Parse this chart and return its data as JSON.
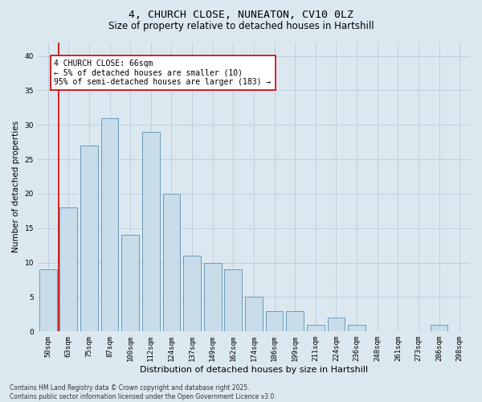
{
  "title_line1": "4, CHURCH CLOSE, NUNEATON, CV10 0LZ",
  "title_line2": "Size of property relative to detached houses in Hartshill",
  "xlabel": "Distribution of detached houses by size in Hartshill",
  "ylabel": "Number of detached properties",
  "categories": [
    "50sqm",
    "63sqm",
    "75sqm",
    "87sqm",
    "100sqm",
    "112sqm",
    "124sqm",
    "137sqm",
    "149sqm",
    "162sqm",
    "174sqm",
    "186sqm",
    "199sqm",
    "211sqm",
    "224sqm",
    "236sqm",
    "248sqm",
    "261sqm",
    "273sqm",
    "286sqm",
    "298sqm"
  ],
  "values": [
    9,
    18,
    27,
    31,
    14,
    29,
    20,
    11,
    10,
    9,
    5,
    3,
    3,
    1,
    2,
    1,
    0,
    0,
    0,
    1,
    0
  ],
  "bar_color": "#c8dcea",
  "bar_edge_color": "#6a9ab8",
  "vline_color": "#cc0000",
  "vline_x_index": 1,
  "annotation_text": "4 CHURCH CLOSE: 66sqm\n← 5% of detached houses are smaller (10)\n95% of semi-detached houses are larger (183) →",
  "annotation_box_edgecolor": "#cc0000",
  "annotation_box_facecolor": "#ffffff",
  "ylim": [
    0,
    42
  ],
  "yticks": [
    0,
    5,
    10,
    15,
    20,
    25,
    30,
    35,
    40
  ],
  "grid_color": "#b8ccd8",
  "bg_color": "#dce8f0",
  "plot_bg_color": "#dce8f0",
  "footer_text": "Contains HM Land Registry data © Crown copyright and database right 2025.\nContains public sector information licensed under the Open Government Licence v3.0.",
  "title_fontsize": 9.5,
  "subtitle_fontsize": 8.5,
  "xlabel_fontsize": 8,
  "ylabel_fontsize": 7.5,
  "tick_fontsize": 6.5,
  "annotation_fontsize": 7,
  "footer_fontsize": 5.5
}
